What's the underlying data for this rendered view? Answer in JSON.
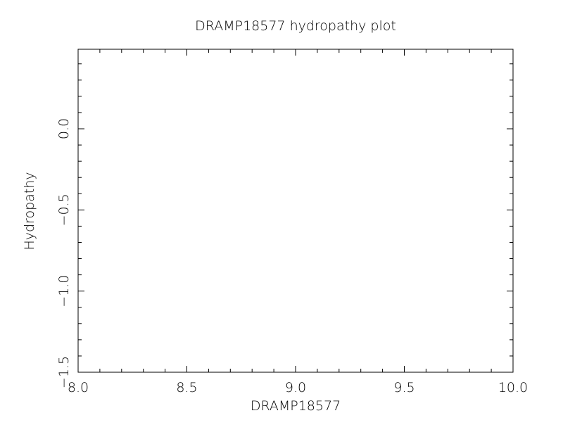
{
  "chart_data": {
    "type": "line",
    "title": "DRAMP18577 hydropathy plot",
    "xlabel": "DRAMP18577",
    "ylabel": "Hydropathy",
    "xlim": [
      8.0,
      10.0
    ],
    "ylim": [
      -1.5,
      0.49
    ],
    "x_ticks": [
      {
        "value": 8.0,
        "label": "8.0"
      },
      {
        "value": 8.5,
        "label": "8.5"
      },
      {
        "value": 9.0,
        "label": "9.0"
      },
      {
        "value": 9.5,
        "label": "9.5"
      },
      {
        "value": 10.0,
        "label": "10.0"
      }
    ],
    "y_ticks": [
      {
        "value": 0.0,
        "label": "0.0"
      },
      {
        "value": -0.5,
        "label": "−0.5"
      },
      {
        "value": -1.0,
        "label": "−1.0"
      },
      {
        "value": -1.5,
        "label": "−1.5"
      }
    ],
    "x_minor_step": 0.1,
    "y_minor_step": 0.1,
    "grid": false,
    "series": []
  }
}
